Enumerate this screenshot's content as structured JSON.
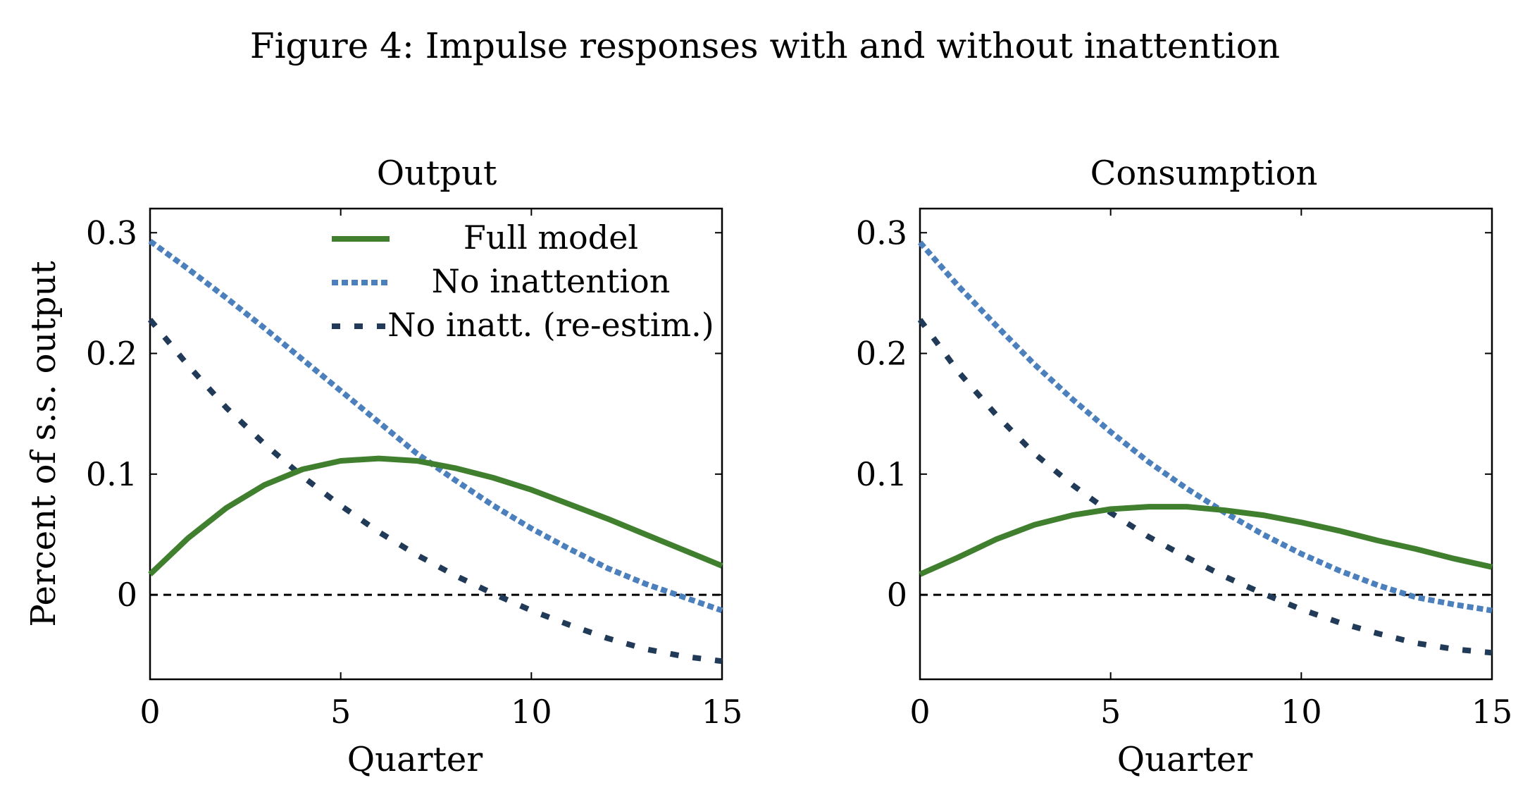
{
  "figure_title": "Figure 4: Impulse responses with and without inattention",
  "colors": {
    "full_model": "#3f7f2d",
    "no_inattention": "#4b80bd",
    "no_inatt_reestim": "#203a57",
    "zero_line": "#000000",
    "axis": "#000000"
  },
  "legend": {
    "full_model": "Full model",
    "no_inattention": "No inattention",
    "no_inatt_reestim": "No inatt. (re-estim.)"
  },
  "chart_data": [
    {
      "type": "line",
      "title": "Output",
      "xlabel": "Quarter",
      "ylabel": "Percent of s.s. output",
      "xlim": [
        0,
        15
      ],
      "ylim": [
        -0.07,
        0.32
      ],
      "xticks": [
        0,
        5,
        10,
        15
      ],
      "xtick_labels": [
        "0",
        "5",
        "10",
        "15"
      ],
      "yticks": [
        0,
        0.1,
        0.2,
        0.3
      ],
      "ytick_labels": [
        "0",
        "0.1",
        "0.2",
        "0.3"
      ],
      "zero_line": true,
      "legend_position": "top-right",
      "x": [
        0,
        1,
        2,
        3,
        4,
        5,
        6,
        7,
        8,
        9,
        10,
        11,
        12,
        13,
        14,
        15
      ],
      "series": [
        {
          "key": "full_model",
          "name": "Full model",
          "style": "solid",
          "values": [
            0.017,
            0.047,
            0.072,
            0.091,
            0.104,
            0.111,
            0.113,
            0.111,
            0.105,
            0.097,
            0.087,
            0.075,
            0.063,
            0.05,
            0.037,
            0.024
          ]
        },
        {
          "key": "no_inattention",
          "name": "No inattention",
          "style": "dotted",
          "values": [
            0.293,
            0.27,
            0.246,
            0.221,
            0.195,
            0.169,
            0.143,
            0.117,
            0.095,
            0.074,
            0.055,
            0.038,
            0.022,
            0.009,
            -0.002,
            -0.013
          ]
        },
        {
          "key": "no_inatt_reestim",
          "name": "No inatt. (re-estim.)",
          "style": "dashed",
          "values": [
            0.228,
            0.19,
            0.155,
            0.125,
            0.098,
            0.074,
            0.052,
            0.033,
            0.016,
            0.001,
            -0.013,
            -0.025,
            -0.036,
            -0.045,
            -0.051,
            -0.055
          ]
        }
      ]
    },
    {
      "type": "line",
      "title": "Consumption",
      "xlabel": "Quarter",
      "ylabel": "",
      "xlim": [
        0,
        15
      ],
      "ylim": [
        -0.07,
        0.32
      ],
      "xticks": [
        0,
        5,
        10,
        15
      ],
      "xtick_labels": [
        "0",
        "5",
        "10",
        "15"
      ],
      "yticks": [
        0,
        0.1,
        0.2,
        0.3
      ],
      "ytick_labels": [
        "0",
        "0.1",
        "0.2",
        "0.3"
      ],
      "zero_line": true,
      "x": [
        0,
        1,
        2,
        3,
        4,
        5,
        6,
        7,
        8,
        9,
        10,
        11,
        12,
        13,
        14,
        15
      ],
      "series": [
        {
          "key": "full_model",
          "name": "Full model",
          "style": "solid",
          "values": [
            0.017,
            0.031,
            0.046,
            0.058,
            0.066,
            0.071,
            0.073,
            0.073,
            0.07,
            0.066,
            0.06,
            0.053,
            0.045,
            0.038,
            0.03,
            0.023
          ]
        },
        {
          "key": "no_inattention",
          "name": "No inattention",
          "style": "dotted",
          "values": [
            0.292,
            0.256,
            0.223,
            0.191,
            0.162,
            0.135,
            0.11,
            0.088,
            0.068,
            0.05,
            0.034,
            0.02,
            0.008,
            -0.002,
            -0.008,
            -0.013
          ]
        },
        {
          "key": "no_inatt_reestim",
          "name": "No inatt. (re-estim.)",
          "style": "dashed",
          "values": [
            0.228,
            0.185,
            0.149,
            0.117,
            0.091,
            0.068,
            0.048,
            0.031,
            0.015,
            0.001,
            -0.012,
            -0.023,
            -0.032,
            -0.04,
            -0.045,
            -0.048
          ]
        }
      ]
    }
  ]
}
